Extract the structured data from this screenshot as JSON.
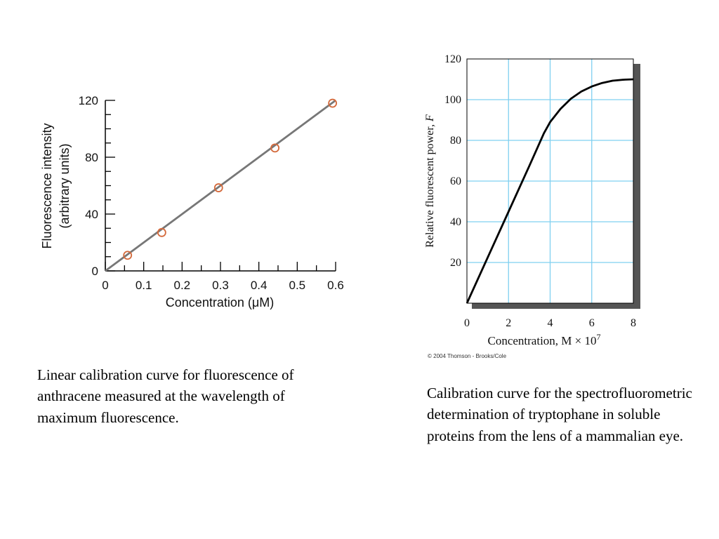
{
  "charts": {
    "left": {
      "ylabel_line1": "Fluorescence intensity",
      "ylabel_line2": "(arbitrary units)",
      "xlabel": "Concentration (μM)"
    },
    "right": {
      "ylabel": "Relative fluorescent power,",
      "ylabel_var": "F",
      "xlabel": "Concentration, M × 10",
      "xlabel_exp": "7",
      "copyright": "© 2004 Thomson - Brooks/Cole"
    }
  },
  "captions": {
    "left": "Linear calibration curve for fluorescence of anthracene measured at the wavelength of maximum fluorescence.",
    "right": "Calibration curve for the spectrofluorometric determination of tryptophane in soluble proteins from the lens of a mammalian eye."
  },
  "chart_data": [
    {
      "type": "scatter",
      "xlabel": "Concentration (μM)",
      "ylabel": "Fluorescence intensity (arbitrary units)",
      "xlim": [
        0,
        0.6
      ],
      "ylim": [
        0,
        120
      ],
      "x_ticks": [
        "0",
        "0.1",
        "0.2",
        "0.3",
        "0.4",
        "0.5",
        "0.6"
      ],
      "y_ticks": [
        "0",
        "40",
        "80",
        "120"
      ],
      "points": [
        [
          0.058,
          11
        ],
        [
          0.147,
          27
        ],
        [
          0.295,
          58.5
        ],
        [
          0.442,
          86.5
        ],
        [
          0.592,
          118
        ]
      ],
      "fit_line": [
        [
          0,
          0
        ],
        [
          0.6,
          120
        ]
      ],
      "marker_color": "#d46a3c",
      "line_color": "#777777",
      "grid": false
    },
    {
      "type": "line",
      "xlabel": "Concentration, M × 10^7",
      "ylabel": "Relative fluorescent power, F",
      "xlim": [
        0,
        8
      ],
      "ylim": [
        0,
        120
      ],
      "x_ticks": [
        "0",
        "2",
        "4",
        "6",
        "8"
      ],
      "y_ticks": [
        "20",
        "40",
        "60",
        "80",
        "100",
        "120"
      ],
      "curve": [
        [
          0,
          0
        ],
        [
          1,
          22.5
        ],
        [
          2,
          45
        ],
        [
          3,
          67.5
        ],
        [
          3.7,
          83.5
        ],
        [
          4,
          89
        ],
        [
          4.5,
          95.5
        ],
        [
          5,
          100.5
        ],
        [
          5.5,
          104
        ],
        [
          6,
          106.5
        ],
        [
          6.5,
          108.2
        ],
        [
          7,
          109.3
        ],
        [
          7.5,
          109.8
        ],
        [
          8,
          110
        ]
      ],
      "grid": true,
      "grid_color": "#7fd0f0",
      "line_color": "#000000"
    }
  ]
}
